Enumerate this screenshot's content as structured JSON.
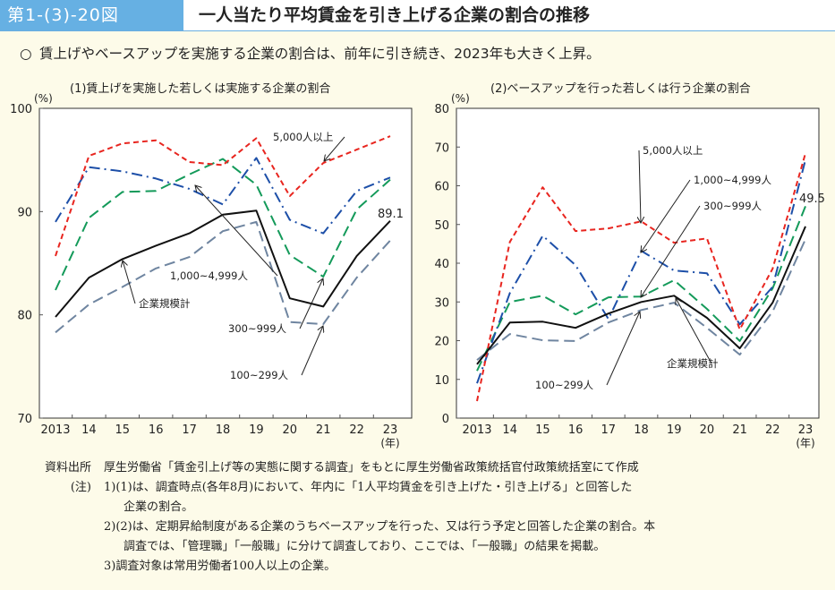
{
  "header": {
    "figure_number": "第1-(3)-20図",
    "title": "一人当たり平均賃金を引き上げる企業の割合の推移"
  },
  "lead": {
    "marker": "○",
    "text": "賃上げやベースアップを実施する企業の割合は、前年に引き続き、2023年も大きく上昇。"
  },
  "colors": {
    "header_blue": "#66b0e3",
    "background": "#fdfbe9",
    "s5000": "#e8251f",
    "s1000": "#1d4fa8",
    "s300": "#149a5a",
    "total": "#111111",
    "s100": "#6f85a0"
  },
  "chart_data": [
    {
      "type": "line",
      "title": "(1)賃上げを実施した若しくは実施する企業の割合",
      "ylabel": "(%)",
      "xlabel": "(年)",
      "ylim": [
        70,
        100
      ],
      "yticks": [
        70,
        80,
        90,
        100
      ],
      "categories": [
        "2013",
        "14",
        "15",
        "16",
        "17",
        "18",
        "19",
        "20",
        "21",
        "22",
        "23"
      ],
      "grid": false,
      "series": [
        {
          "name": "5,000人以上",
          "style": "dash-short",
          "color": "#e8251f",
          "values": [
            85.7,
            95.4,
            96.6,
            96.9,
            94.8,
            94.5,
            97.1,
            91.5,
            94.7,
            96.0,
            97.3
          ]
        },
        {
          "name": "1,000~4,999人",
          "style": "dash-dot",
          "color": "#1d4fa8",
          "values": [
            89.0,
            94.3,
            93.9,
            93.2,
            92.2,
            90.7,
            95.2,
            89.2,
            87.9,
            92.0,
            93.3
          ]
        },
        {
          "name": "300~999人",
          "style": "dash-long",
          "color": "#149a5a",
          "values": [
            82.4,
            89.4,
            91.9,
            92.0,
            93.6,
            95.1,
            92.6,
            85.8,
            83.7,
            90.2,
            93.1
          ]
        },
        {
          "name": "企業規模計",
          "style": "solid",
          "color": "#111111",
          "values": [
            79.8,
            83.6,
            85.4,
            86.7,
            87.9,
            89.7,
            90.1,
            81.6,
            80.8,
            85.7,
            89.1
          ]
        },
        {
          "name": "100~299人",
          "style": "dash-long",
          "color": "#6f85a0",
          "values": [
            78.3,
            81.0,
            82.7,
            84.5,
            85.6,
            88.1,
            89.0,
            79.3,
            79.1,
            83.6,
            87.2
          ]
        }
      ],
      "annotations": [
        {
          "text": "5,000人以上",
          "series": 0
        },
        {
          "text": "1,000~4,999人",
          "series": 1
        },
        {
          "text": "300~999人",
          "series": 2
        },
        {
          "text": "企業規模計",
          "series": 3
        },
        {
          "text": "100~299人",
          "series": 4
        },
        {
          "text": "89.1",
          "series": 3
        }
      ]
    },
    {
      "type": "line",
      "title": "(2)ベースアップを行った若しくは行う企業の割合",
      "ylabel": "(%)",
      "xlabel": "(年)",
      "ylim": [
        0,
        80
      ],
      "yticks": [
        0,
        10,
        20,
        30,
        40,
        50,
        60,
        70,
        80
      ],
      "categories": [
        "2013",
        "14",
        "15",
        "16",
        "17",
        "18",
        "19",
        "20",
        "21",
        "22",
        "23"
      ],
      "grid": false,
      "series": [
        {
          "name": "5,000人以上",
          "style": "dash-short",
          "color": "#e8251f",
          "values": [
            4.4,
            45.5,
            59.6,
            48.3,
            49.0,
            50.8,
            45.3,
            46.4,
            22.9,
            38.6,
            68.4
          ]
        },
        {
          "name": "1,000~4,999人",
          "style": "dash-dot",
          "color": "#1d4fa8",
          "values": [
            9.0,
            32.3,
            47.1,
            39.5,
            25.6,
            43.2,
            38.1,
            37.4,
            24.2,
            33.9,
            66.7
          ]
        },
        {
          "name": "300~999人",
          "style": "dash-long",
          "color": "#149a5a",
          "values": [
            12.2,
            30.0,
            31.6,
            26.8,
            31.2,
            31.4,
            35.6,
            28.2,
            19.9,
            33.5,
            54.7
          ]
        },
        {
          "name": "企業規模計",
          "style": "solid",
          "color": "#111111",
          "values": [
            13.9,
            24.7,
            24.9,
            23.3,
            27.0,
            30.0,
            31.6,
            25.9,
            18.0,
            29.8,
            49.5
          ]
        },
        {
          "name": "100~299人",
          "style": "dash-long",
          "color": "#6f85a0",
          "values": [
            15.0,
            21.7,
            20.1,
            19.9,
            24.7,
            27.9,
            29.8,
            23.3,
            16.4,
            27.5,
            46.2
          ]
        }
      ],
      "annotations": [
        {
          "text": "5,000人以上",
          "series": 0
        },
        {
          "text": "1,000~4,999人",
          "series": 1
        },
        {
          "text": "300~999人",
          "series": 2
        },
        {
          "text": "企業規模計",
          "series": 3
        },
        {
          "text": "100~299人",
          "series": 4
        },
        {
          "text": "49.5",
          "series": 3
        }
      ]
    }
  ],
  "notes": {
    "source_label": "資料出所",
    "source_text": "厚生労働省「賃金引上げ等の実態に関する調査」をもとに厚生労働省政策統括官付政策統括室にて作成",
    "notes_label": "(注)",
    "items": [
      "1)(1)は、調査時点(各年8月)において、年内に「1人平均賃金を引き上げた・引き上げる」と回答した",
      "企業の割合。",
      "2)(2)は、定期昇給制度がある企業のうちベースアップを行った、又は行う予定と回答した企業の割合。本",
      "調査では、「管理職」「一般職」に分けて調査しており、ここでは、「一般職」の結果を掲載。",
      "3)調査対象は常用労働者100人以上の企業。"
    ]
  }
}
